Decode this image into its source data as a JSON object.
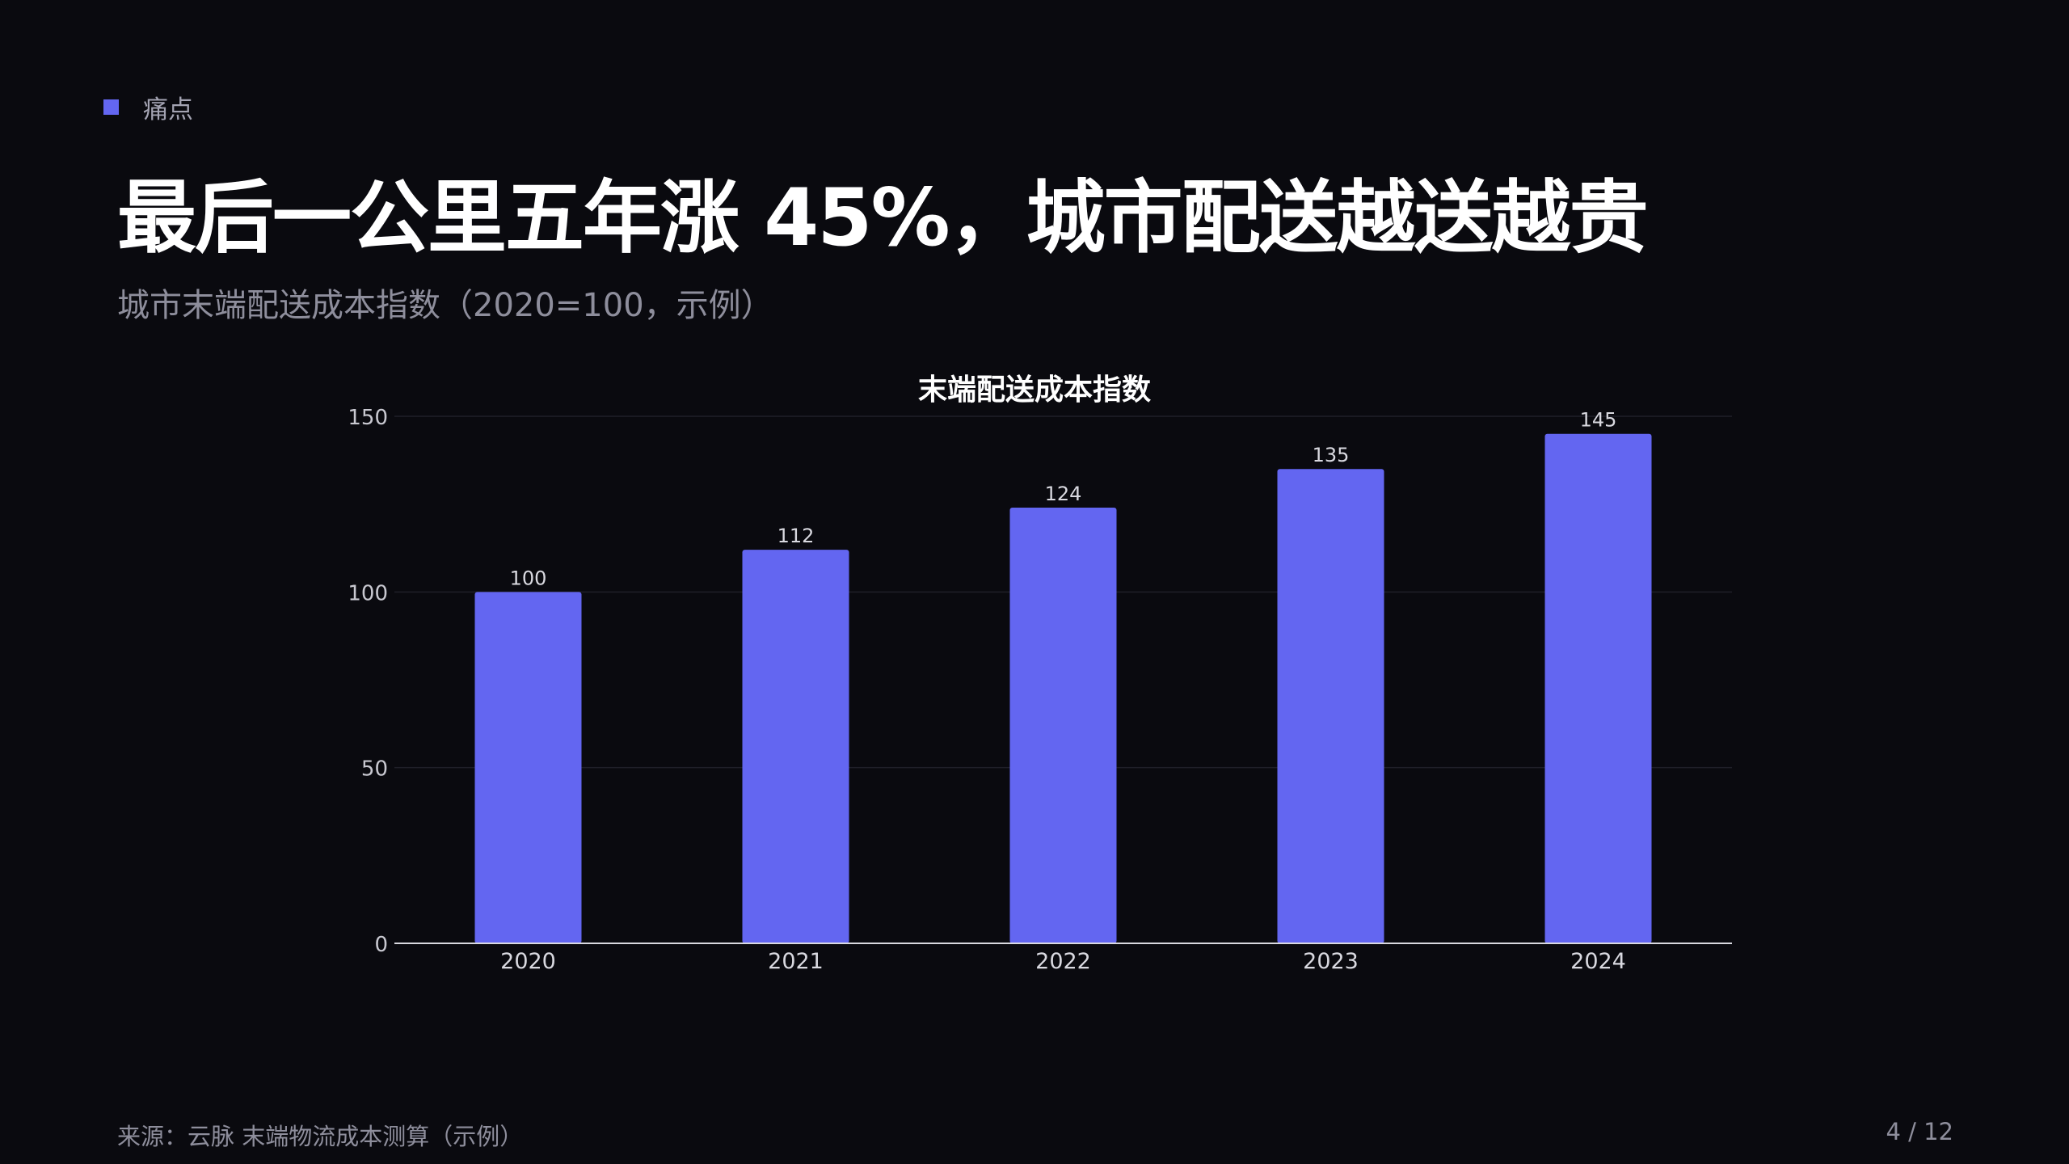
{
  "section": {
    "label": "痛点"
  },
  "title": "最后一公里五年涨 45%，城市配送越送越贵",
  "subtitle": "城市末端配送成本指数（2020=100，示例）",
  "chart_data": {
    "type": "bar",
    "title": "末端配送成本指数",
    "xlabel": "",
    "ylabel": "",
    "categories": [
      "2020",
      "2021",
      "2022",
      "2023",
      "2024"
    ],
    "values": [
      100,
      112,
      124,
      135,
      145
    ],
    "ylim": [
      0,
      150
    ],
    "yticks": [
      0,
      50,
      100,
      150
    ],
    "grid": true,
    "data_labels": true,
    "bar_color": "#6366f1"
  },
  "footer": {
    "source": "来源：云脉 末端物流成本测算（示例）",
    "page": "4 / 12"
  },
  "colors": {
    "background": "#0a0a0f",
    "accent": "#6366f1",
    "muted_text": "#8e8e9c"
  }
}
